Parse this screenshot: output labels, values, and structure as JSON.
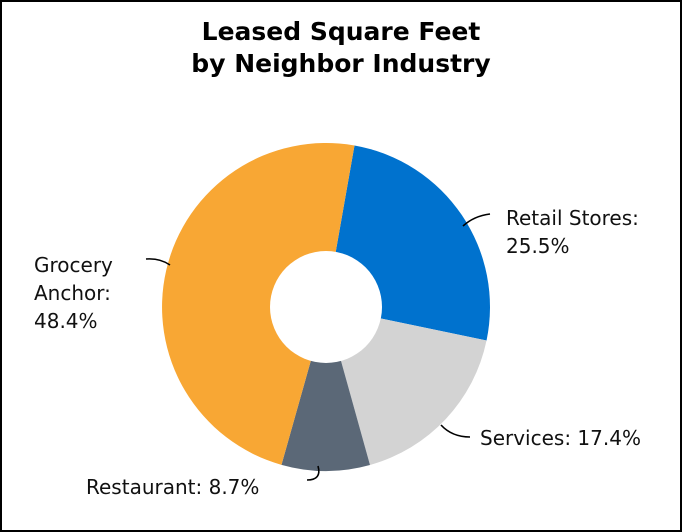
{
  "chart_data": {
    "type": "pie",
    "title_lines": [
      "Leased Square Feet",
      "by Neighbor Industry"
    ],
    "slices": [
      {
        "name": "Retail Stores",
        "value": 25.5,
        "color": "#0072CE",
        "label_lines": [
          "Retail Stores:",
          "25.5%"
        ]
      },
      {
        "name": "Services",
        "value": 17.4,
        "color": "#D3D3D3",
        "label_lines": [
          "Services: 17.4%"
        ]
      },
      {
        "name": "Restaurant",
        "value": 8.7,
        "color": "#5B6877",
        "label_lines": [
          "Restaurant: 8.7%"
        ]
      },
      {
        "name": "Grocery Anchor",
        "value": 48.4,
        "color": "#F8A734",
        "label_lines": [
          "Grocery",
          "Anchor:",
          "48.4%"
        ]
      }
    ],
    "donut": true,
    "legend": "none"
  }
}
